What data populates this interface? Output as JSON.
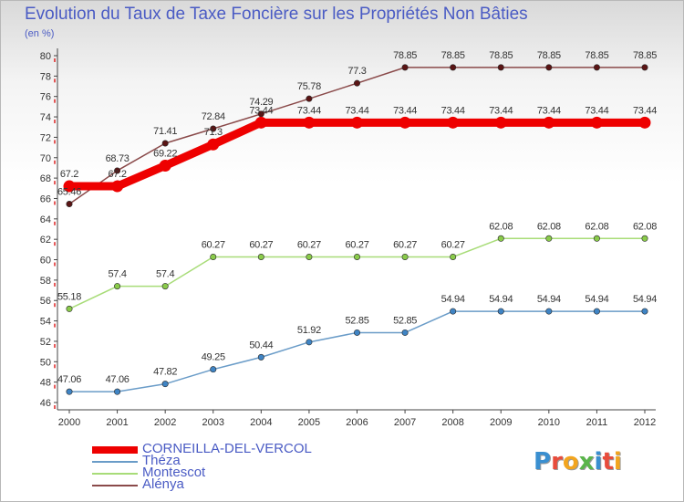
{
  "title": "Evolution du Taux de Taxe Foncière sur les Propriétés Non Bâties",
  "subtitle": "(en %)",
  "logo": {
    "text": "Proxiti",
    "letters": [
      {
        "ch": "P",
        "color": "#3a8fd0"
      },
      {
        "ch": "r",
        "color": "#e84c3c"
      },
      {
        "ch": "o",
        "color": "#f2a51f"
      },
      {
        "ch": "x",
        "color": "#5ab54b"
      },
      {
        "ch": "i",
        "color": "#3a8fd0"
      },
      {
        "ch": "t",
        "color": "#e84c3c"
      },
      {
        "ch": "i",
        "color": "#f2a51f"
      }
    ]
  },
  "chart_data": {
    "type": "line",
    "title": "Evolution du Taux de Taxe Foncière sur les Propriétés Non Bâties",
    "ylabel": "(en %)",
    "xlabel": "",
    "x": [
      "2000",
      "2001",
      "2002",
      "2003",
      "2004",
      "2005",
      "2006",
      "2007",
      "2008",
      "2009",
      "2010",
      "2011",
      "2012"
    ],
    "ylim": [
      46,
      80
    ],
    "yticks": [
      46,
      48,
      50,
      52,
      54,
      56,
      58,
      60,
      62,
      64,
      66,
      68,
      70,
      72,
      74,
      76,
      78,
      80
    ],
    "grid": false,
    "legend_position": "bottom-left",
    "series": [
      {
        "name": "CORNEILLA-DEL-VERCOL",
        "color": "#ee0000",
        "point_color": "#ee0000",
        "line_width": 9,
        "values": [
          67.2,
          67.2,
          69.22,
          71.3,
          73.44,
          73.44,
          73.44,
          73.44,
          73.44,
          73.44,
          73.44,
          73.44,
          73.44
        ],
        "labels": [
          "67.2",
          "67.2",
          "69.22",
          "71.3",
          "73.44",
          "73.44",
          "73.44",
          "73.44",
          "73.44",
          "73.44",
          "73.44",
          "73.44",
          "73.44"
        ]
      },
      {
        "name": "Théza",
        "color": "#6a9cc8",
        "point_color": "#3f84c4",
        "line_width": 1.5,
        "values": [
          47.06,
          47.06,
          47.82,
          49.25,
          50.44,
          51.92,
          52.85,
          52.85,
          54.94,
          54.94,
          54.94,
          54.94,
          54.94
        ],
        "labels": [
          "47.06",
          "47.06",
          "47.82",
          "49.25",
          "50.44",
          "51.92",
          "52.85",
          "52.85",
          "54.94",
          "54.94",
          "54.94",
          "54.94",
          "54.94"
        ]
      },
      {
        "name": "Montescot",
        "color": "#a8dc78",
        "point_color": "#8acb4a",
        "line_width": 1.5,
        "values": [
          55.18,
          57.4,
          57.4,
          60.27,
          60.27,
          60.27,
          60.27,
          60.27,
          60.27,
          62.08,
          62.08,
          62.08,
          62.08
        ],
        "labels": [
          "55.18",
          "57.4",
          "57.4",
          "60.27",
          "60.27",
          "60.27",
          "60.27",
          "60.27",
          "60.27",
          "62.08",
          "62.08",
          "62.08",
          "62.08"
        ]
      },
      {
        "name": "Alénya",
        "color": "#8a4a4a",
        "point_color": "#5a1414",
        "line_width": 1.5,
        "values": [
          65.46,
          68.73,
          71.41,
          72.84,
          74.29,
          75.78,
          77.3,
          78.85,
          78.85,
          78.85,
          78.85,
          78.85,
          78.85
        ],
        "labels": [
          "65.46",
          "68.73",
          "71.41",
          "72.84",
          "74.29",
          "75.78",
          "77.3",
          "78.85",
          "78.85",
          "78.85",
          "78.85",
          "78.85",
          "78.85"
        ]
      }
    ]
  }
}
